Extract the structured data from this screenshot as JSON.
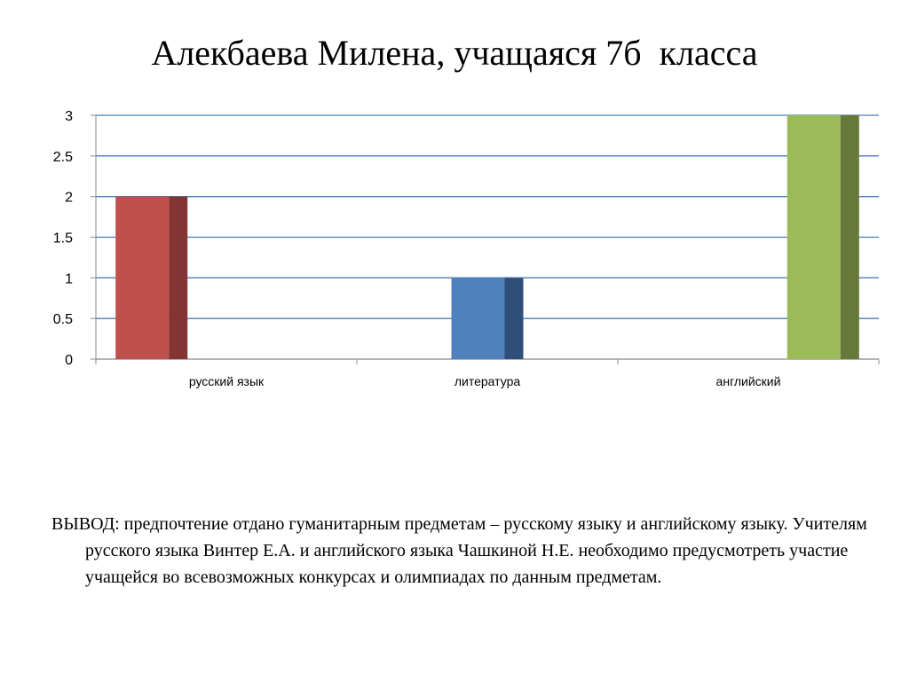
{
  "slide": {
    "title": "Алекбаева Милена, учащаяся 7б  класса",
    "conclusion_label": "ВЫВОД:",
    "conclusion_text": " предпочтение отдано гуманитарным предметам – русскому языку и английскому языку. Учителям  русского языка Винтер Е.А. и английского языка Чашкиной Н.Е. необходимо предусмотреть участие учащейся во всевозможных конкурсах и олимпиадах по данным предметам."
  },
  "chart_data": {
    "type": "bar",
    "categories": [
      "русский язык",
      "литература",
      "английский"
    ],
    "series": [
      {
        "values": [
          2,
          0,
          0
        ],
        "color": "#C0504D",
        "shade": "#843533"
      },
      {
        "values": [
          0,
          1,
          0
        ],
        "color": "#4F81BD",
        "shade": "#2F4F78"
      },
      {
        "values": [
          0,
          0,
          3
        ],
        "color": "#9BBB59",
        "shade": "#66783A"
      }
    ],
    "ylim": [
      0,
      3
    ],
    "yticks": [
      0,
      0.5,
      1,
      1.5,
      2,
      2.5,
      3
    ],
    "ytick_labels": [
      "0",
      "0.5",
      "1",
      "1.5",
      "2",
      "2.5",
      "3"
    ],
    "grid": true,
    "gridline_color": "#4A7EBB",
    "style": "3d-clustered-column"
  }
}
